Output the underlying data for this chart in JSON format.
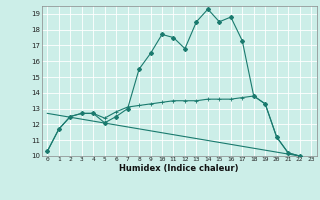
{
  "title": "",
  "xlabel": "Humidex (Indice chaleur)",
  "bg_color": "#cceee8",
  "line_color": "#1a7a6e",
  "grid_color": "#ffffff",
  "xlim": [
    -0.5,
    23.5
  ],
  "ylim": [
    10,
    19.5
  ],
  "yticks": [
    10,
    11,
    12,
    13,
    14,
    15,
    16,
    17,
    18,
    19
  ],
  "xticks": [
    0,
    1,
    2,
    3,
    4,
    5,
    6,
    7,
    8,
    9,
    10,
    11,
    12,
    13,
    14,
    15,
    16,
    17,
    18,
    19,
    20,
    21,
    22,
    23
  ],
  "line1_x": [
    0,
    1,
    2,
    3,
    4,
    5,
    6,
    7,
    8,
    9,
    10,
    11,
    12,
    13,
    14,
    15,
    16,
    17,
    18,
    19,
    20,
    21,
    22
  ],
  "line1_y": [
    10.3,
    11.7,
    12.5,
    12.7,
    12.7,
    12.1,
    12.5,
    13.0,
    15.5,
    16.5,
    17.7,
    17.5,
    16.8,
    18.5,
    19.3,
    18.5,
    18.8,
    17.3,
    13.8,
    13.3,
    11.2,
    10.2,
    10.0
  ],
  "line2_x": [
    0,
    1,
    2,
    3,
    4,
    5,
    6,
    7,
    8,
    9,
    10,
    11,
    12,
    13,
    14,
    15,
    16,
    17,
    18,
    19,
    20,
    21,
    22
  ],
  "line2_y": [
    10.3,
    11.7,
    12.5,
    12.7,
    12.7,
    12.4,
    12.8,
    13.1,
    13.2,
    13.3,
    13.4,
    13.5,
    13.5,
    13.5,
    13.6,
    13.6,
    13.6,
    13.7,
    13.8,
    13.3,
    11.2,
    10.2,
    10.0
  ],
  "line3_x": [
    0,
    22
  ],
  "line3_y": [
    12.7,
    10.0
  ]
}
